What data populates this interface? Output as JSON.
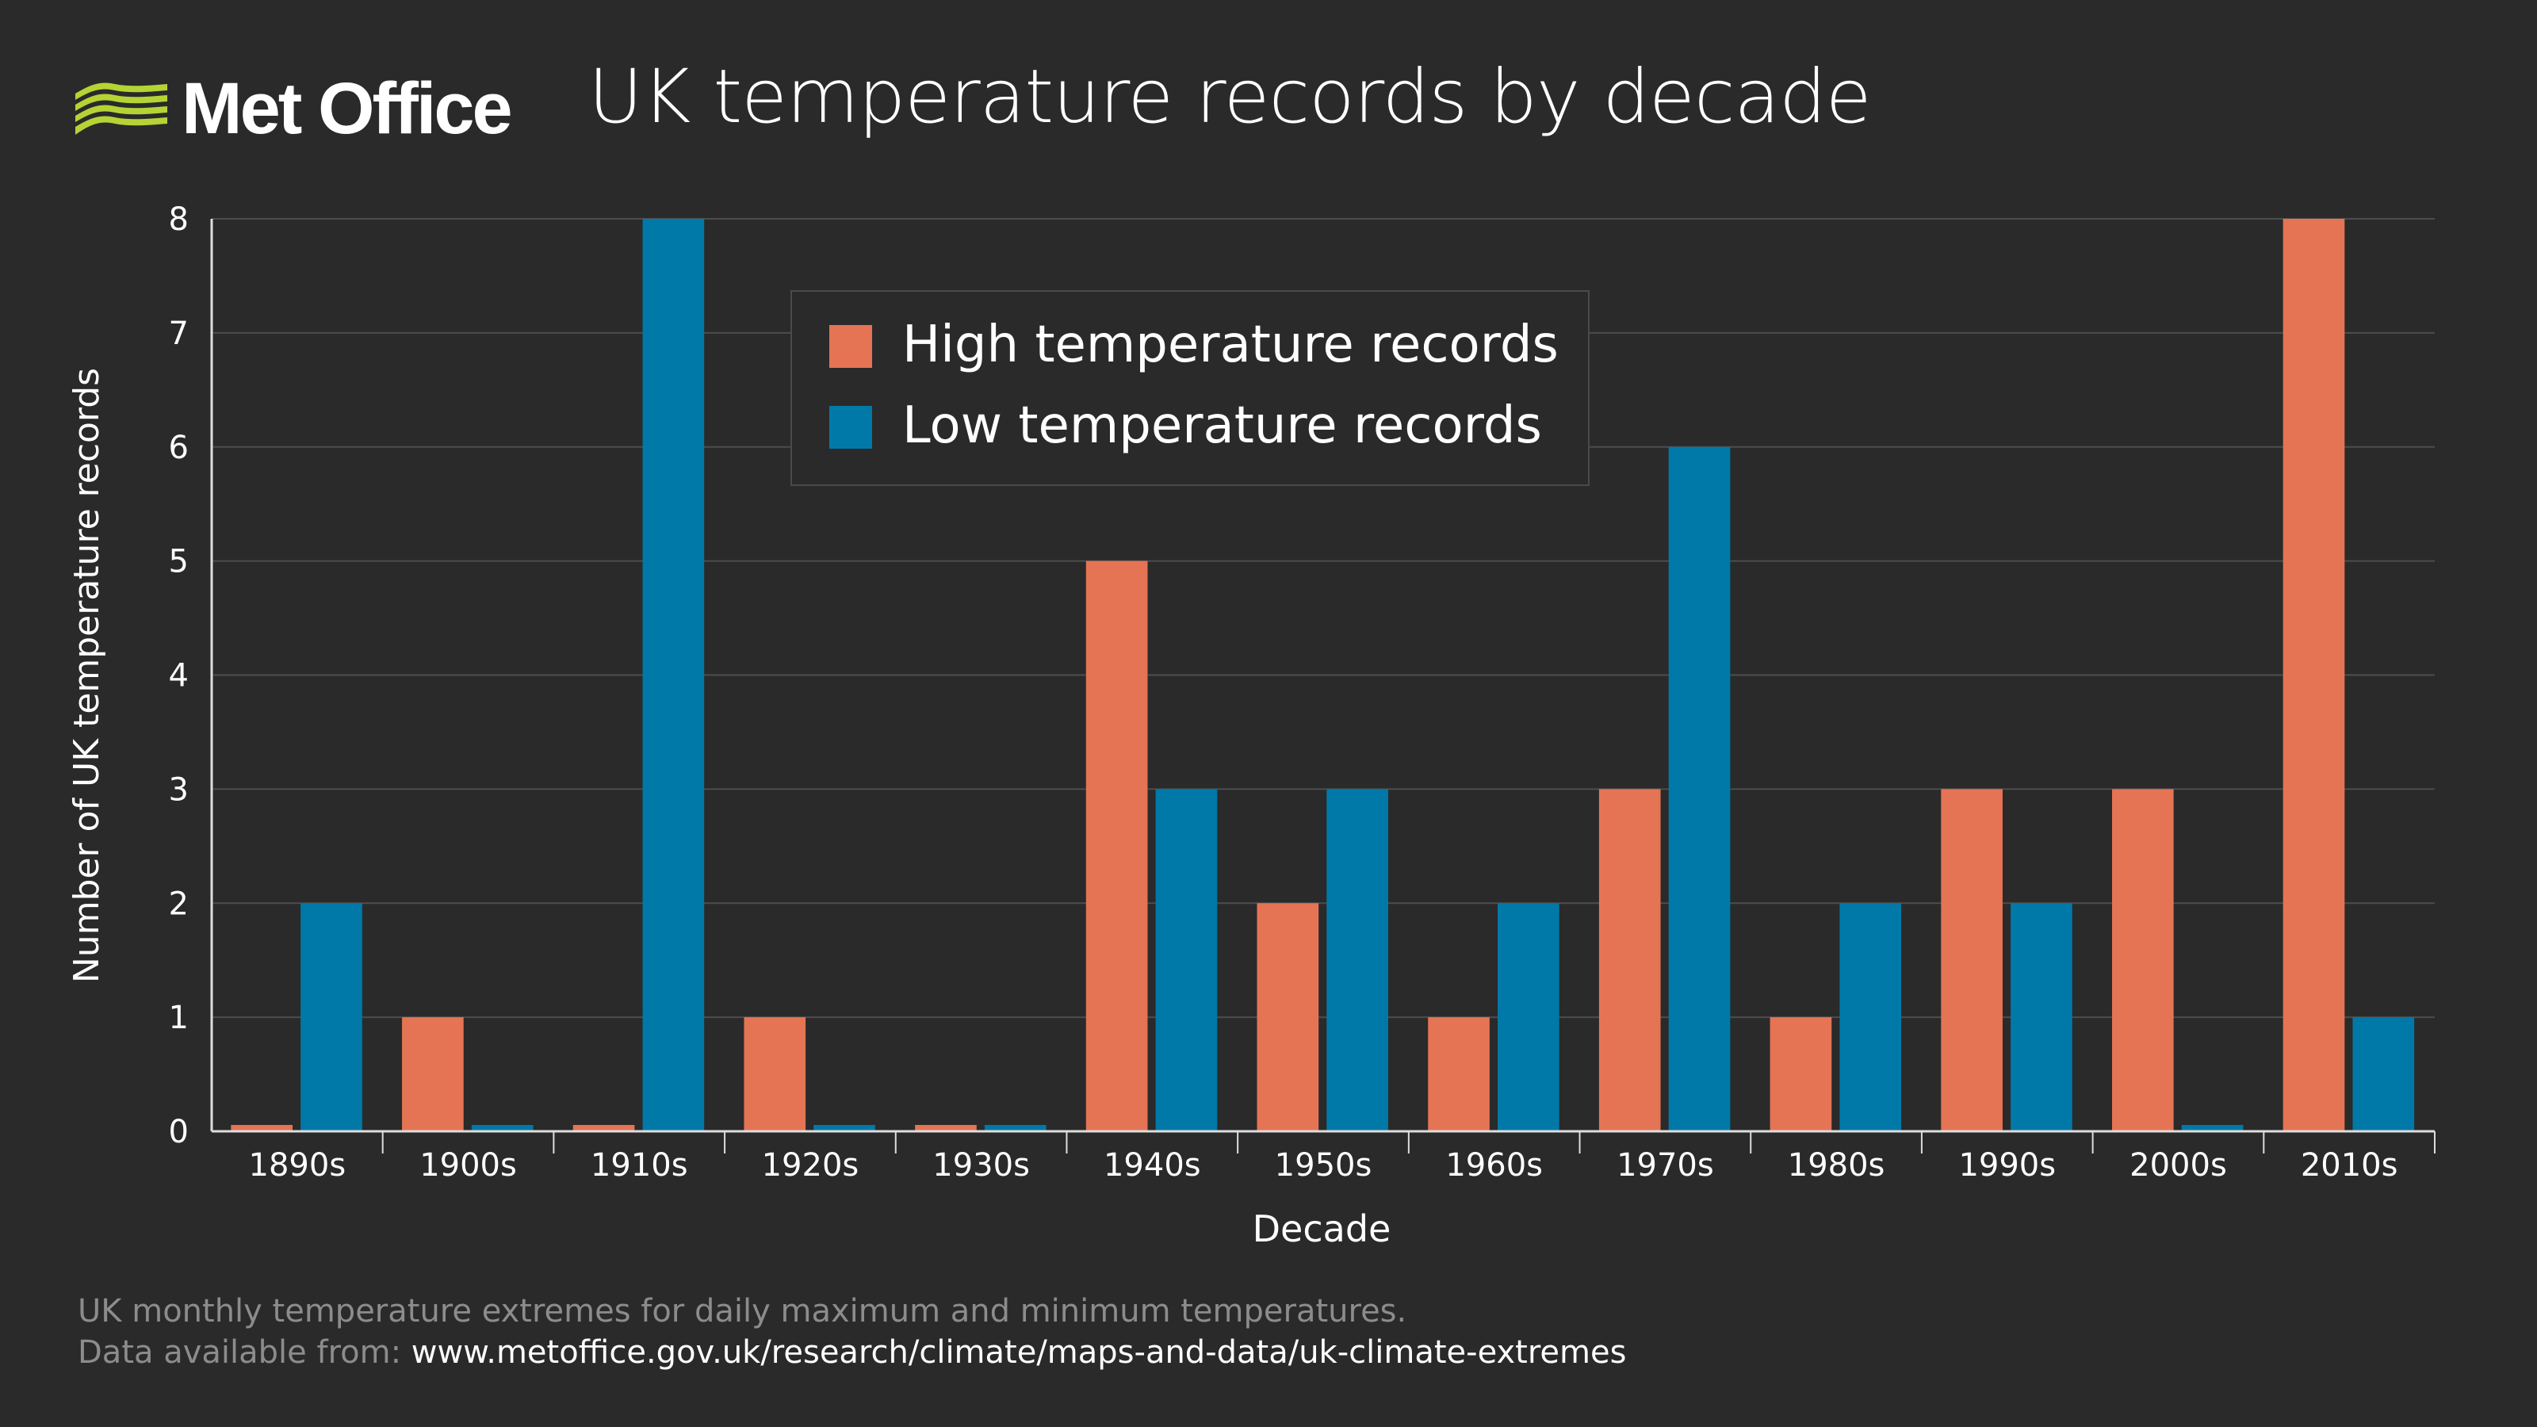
{
  "logo": {
    "text": "Met Office",
    "color": "#b5d334"
  },
  "title": "UK temperature records by decade",
  "footer": {
    "line1": "UK monthly temperature extremes for daily maximum and minimum temperatures.",
    "line2_prefix": "Data available from:",
    "line2_url": "www.metoffice.gov.uk/research/climate/maps-and-data/uk-climate-extremes"
  },
  "chart_data": {
    "type": "bar",
    "xlabel": "Decade",
    "ylabel": "Number of UK temperature records",
    "ylim": [
      0,
      8
    ],
    "yticks": [
      0,
      1,
      2,
      3,
      4,
      5,
      6,
      7,
      8
    ],
    "grid": true,
    "legend": "top-center",
    "categories": [
      "1890s",
      "1900s",
      "1910s",
      "1920s",
      "1930s",
      "1940s",
      "1950s",
      "1960s",
      "1970s",
      "1980s",
      "1990s",
      "2000s",
      "2010s"
    ],
    "series": [
      {
        "name": "High temperature records",
        "color": "#e57455",
        "values": [
          0,
          1,
          0,
          1,
          0,
          5,
          2,
          1,
          3,
          1,
          3,
          3,
          8
        ]
      },
      {
        "name": "Low temperature records",
        "color": "#0079a8",
        "values": [
          2,
          0,
          8,
          0,
          0,
          3,
          3,
          2,
          6,
          2,
          2,
          0,
          1
        ]
      }
    ]
  }
}
